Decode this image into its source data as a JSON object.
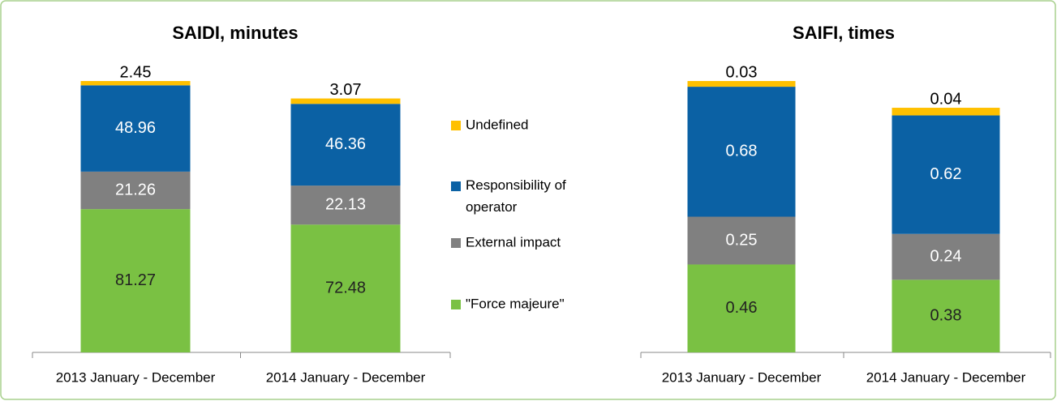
{
  "chart_data": [
    {
      "type": "stacked-bar",
      "title": "SAIDI, minutes",
      "categories": [
        "2013 January - December",
        "2014 January - December"
      ],
      "series": [
        {
          "name": "\"Force majeure\"",
          "color": "#7ac143",
          "values": [
            81.27,
            72.48
          ]
        },
        {
          "name": "External impact",
          "color": "#808080",
          "values": [
            21.26,
            22.13
          ]
        },
        {
          "name": "Responsibility of operator",
          "color": "#0b61a4",
          "values": [
            48.96,
            46.36
          ]
        },
        {
          "name": "Undefined",
          "color": "#ffc000",
          "values": [
            2.45,
            3.07
          ]
        }
      ]
    },
    {
      "type": "stacked-bar",
      "title": "SAIFI, times",
      "categories": [
        "2013 January - December",
        "2014 January - December"
      ],
      "series": [
        {
          "color": "#7ac143",
          "values": [
            0.46,
            0.38
          ]
        },
        {
          "color": "#808080",
          "values": [
            0.25,
            0.24
          ]
        },
        {
          "color": "#0b61a4",
          "values": [
            0.68,
            0.62
          ]
        },
        {
          "color": "#ffc000",
          "values": [
            0.03,
            0.04
          ]
        }
      ]
    }
  ]
}
